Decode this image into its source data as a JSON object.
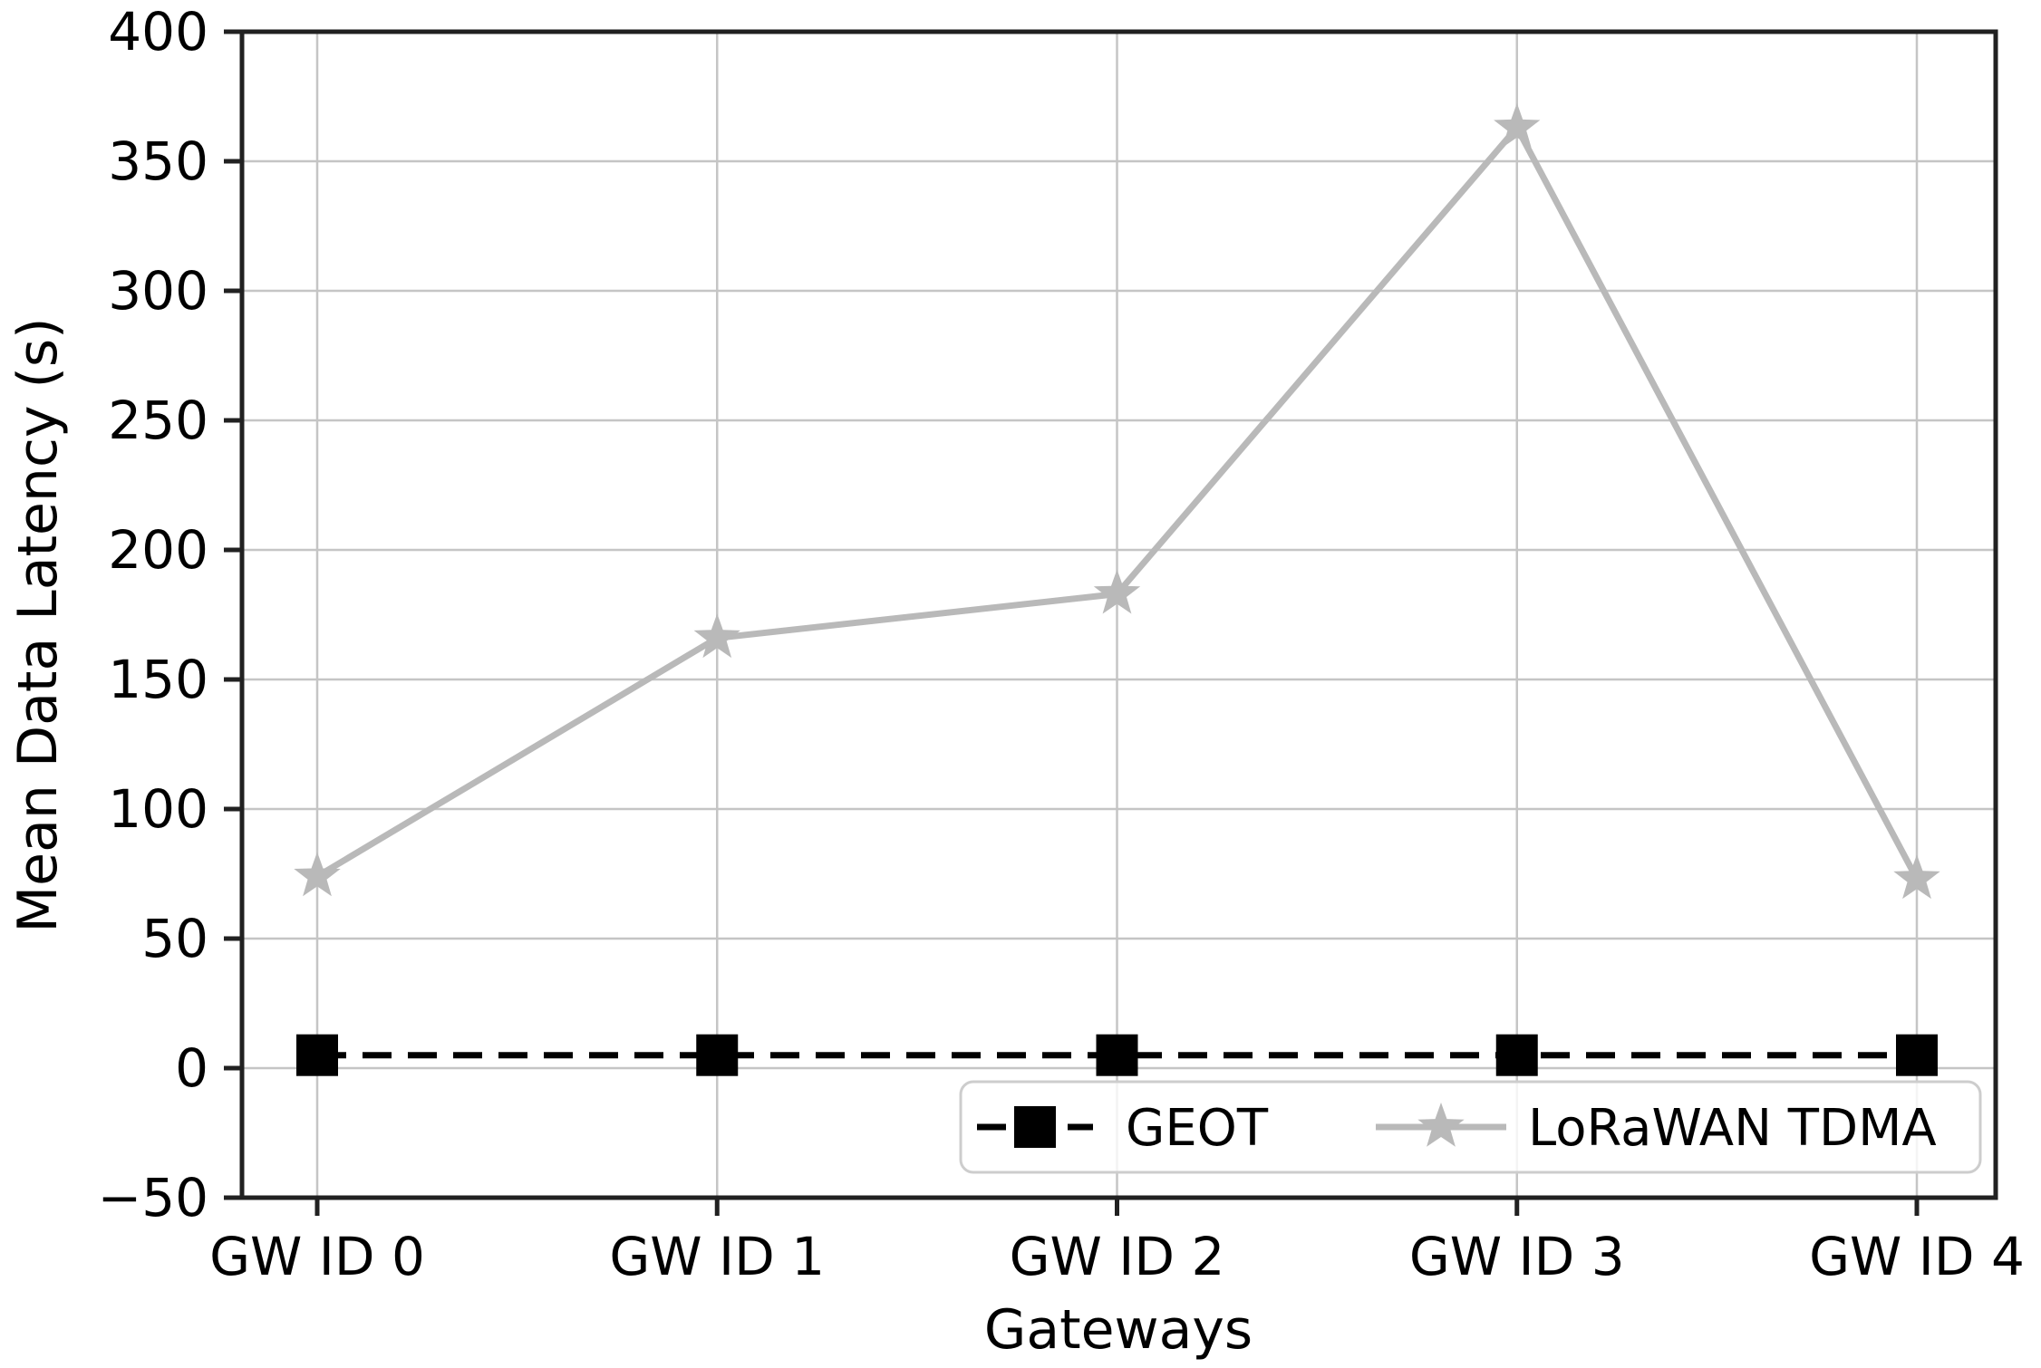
{
  "chart_data": {
    "type": "line",
    "title": "",
    "xlabel": "Gateways",
    "ylabel": "Mean Data Latency (s)",
    "categories": [
      "GW ID 0",
      "GW ID 1",
      "GW ID 2",
      "GW ID 3",
      "GW ID 4"
    ],
    "series": [
      {
        "name": "GEOT",
        "values": [
          5,
          5,
          5,
          5,
          5
        ],
        "color": "#000000",
        "line_style": "dashed",
        "marker": "square"
      },
      {
        "name": "LoRaWAN TDMA",
        "values": [
          74,
          166,
          183,
          363,
          73
        ],
        "color": "#b9b9b9",
        "line_style": "solid",
        "marker": "star"
      }
    ],
    "ylim": [
      -50,
      400
    ],
    "yticks": [
      -50,
      0,
      50,
      100,
      150,
      200,
      250,
      300,
      350,
      400
    ],
    "grid": true,
    "grid_color": "#c5c5c5",
    "spine_color": "#212121",
    "legend_position": "lower right",
    "legend_columns": 2,
    "legend_border_color": "#cdcdcd",
    "background_color": "#ffffff"
  }
}
